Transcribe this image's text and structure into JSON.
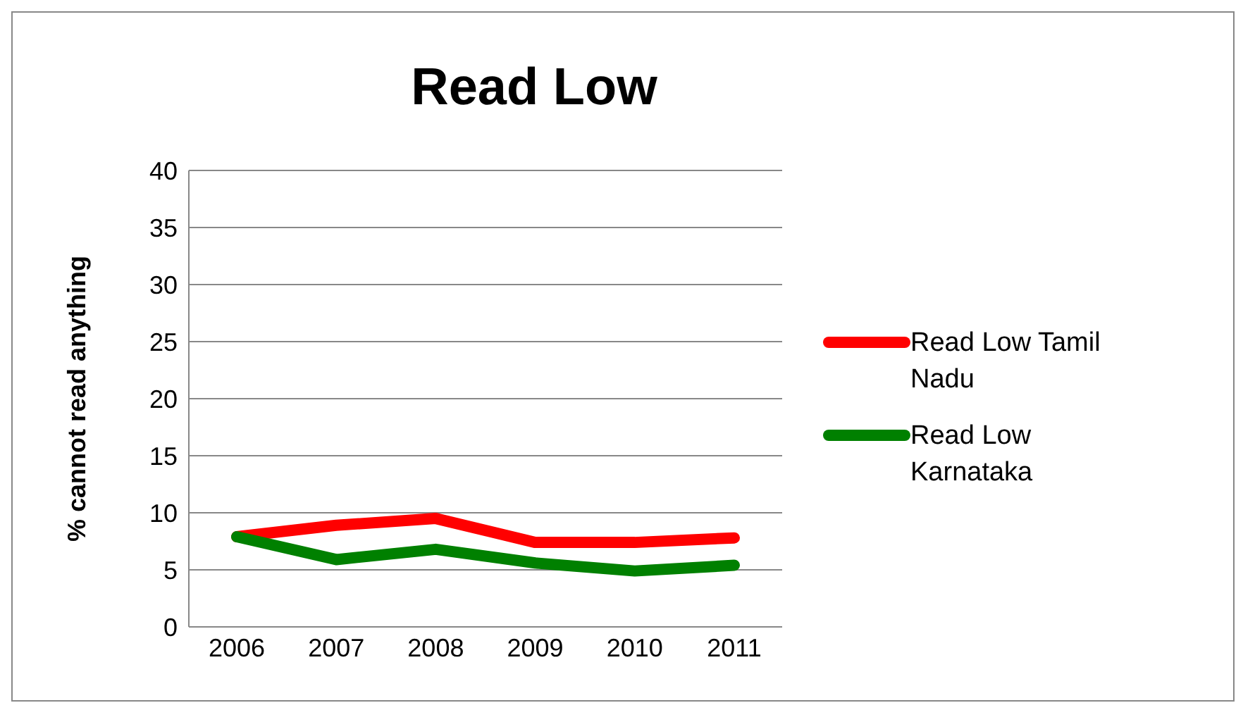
{
  "chart_data": {
    "type": "line",
    "title": "Read Low",
    "ylabel": "% cannot read anything",
    "categories": [
      "2006",
      "2007",
      "2008",
      "2009",
      "2010",
      "2011"
    ],
    "series": [
      {
        "name": "Read Low Tamil Nadu",
        "color": "#ff0000",
        "values": [
          7.9,
          8.9,
          9.5,
          7.4,
          7.4,
          7.8
        ]
      },
      {
        "name": "Read Low Karnataka",
        "color": "#008000",
        "values": [
          7.9,
          5.9,
          6.8,
          5.6,
          4.9,
          5.4
        ]
      }
    ],
    "ylim": [
      0,
      40
    ],
    "yticks": [
      0,
      5,
      10,
      15,
      20,
      25,
      30,
      35,
      40
    ],
    "grid": "y",
    "legend": "right",
    "marker": "none"
  }
}
